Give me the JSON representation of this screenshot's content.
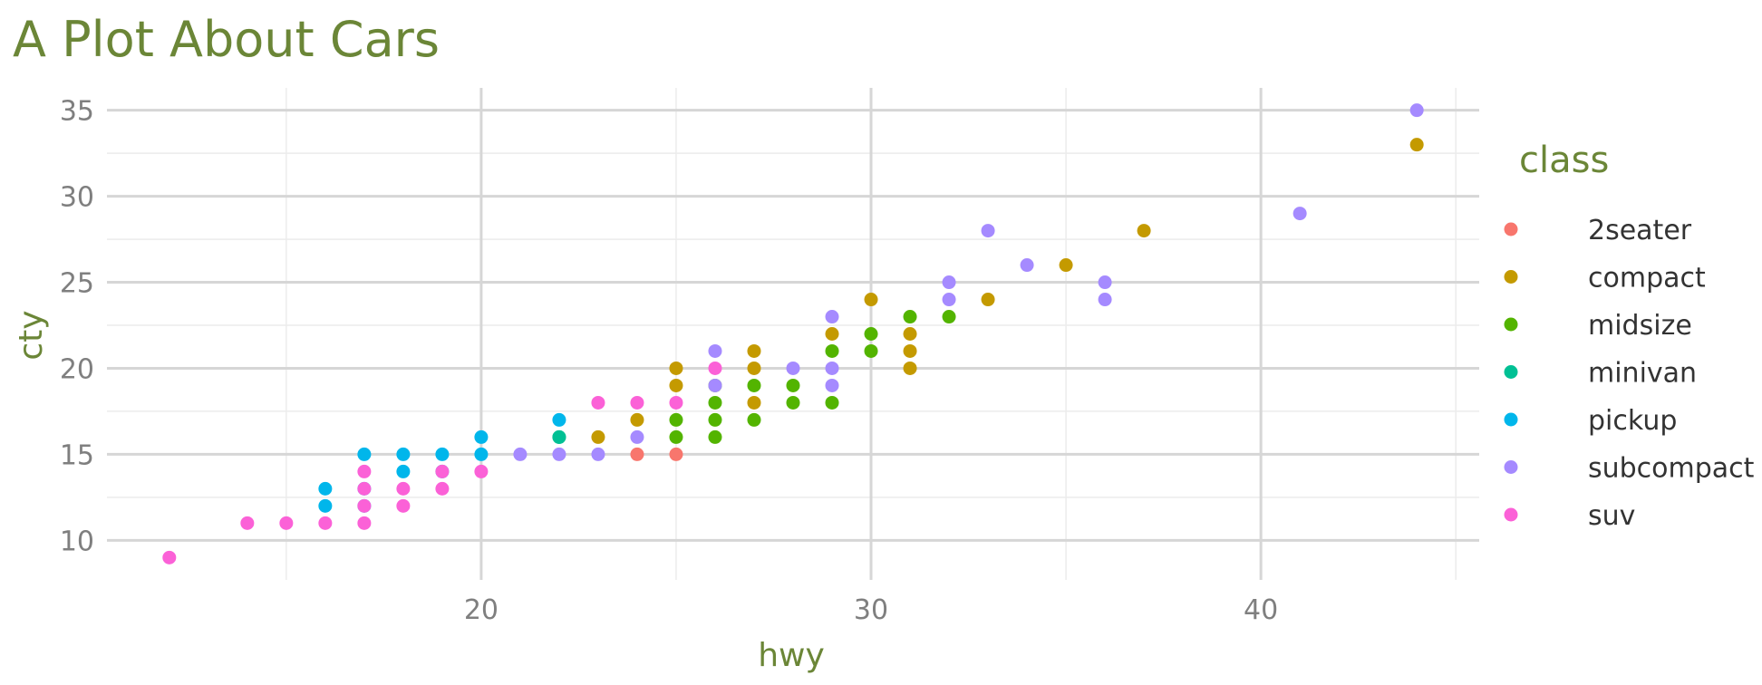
{
  "chart_data": {
    "type": "scatter",
    "title": "A Plot About Cars",
    "xlabel": "hwy",
    "ylabel": "cty",
    "xlim": [
      10.4,
      45.6
    ],
    "ylim": [
      7.7,
      36.3
    ],
    "x_ticks": [
      20,
      30,
      40
    ],
    "y_ticks": [
      10,
      15,
      20,
      25,
      30,
      35
    ],
    "x_minor_ticks": [
      15,
      25,
      35,
      45
    ],
    "y_minor_ticks": [
      12.5,
      17.5,
      22.5,
      27.5,
      32.5
    ],
    "grid": true,
    "legend": {
      "title": "class",
      "position": "right",
      "entries": [
        "2seater",
        "compact",
        "midsize",
        "minivan",
        "pickup",
        "subcompact",
        "suv"
      ]
    },
    "colors": {
      "2seater": "#F8766D",
      "compact": "#C49A00",
      "midsize": "#53B400",
      "minivan": "#00C094",
      "pickup": "#00B6EB",
      "subcompact": "#A58AFF",
      "suv": "#FB61D7"
    },
    "series": [
      {
        "name": "2seater",
        "points": [
          [
            24,
            15
          ],
          [
            25,
            15
          ]
        ]
      },
      {
        "name": "compact",
        "points": [
          [
            44,
            33
          ],
          [
            37,
            28
          ],
          [
            35,
            26
          ],
          [
            33,
            24
          ],
          [
            30,
            24
          ],
          [
            29,
            22
          ],
          [
            31,
            22
          ],
          [
            31,
            21
          ],
          [
            27,
            21
          ],
          [
            31,
            20
          ],
          [
            25,
            20
          ],
          [
            27,
            20
          ],
          [
            25,
            19
          ],
          [
            27,
            18
          ],
          [
            24,
            17
          ],
          [
            23,
            16
          ]
        ]
      },
      {
        "name": "midsize",
        "points": [
          [
            31,
            23
          ],
          [
            32,
            23
          ],
          [
            30,
            22
          ],
          [
            29,
            21
          ],
          [
            30,
            21
          ],
          [
            26,
            19
          ],
          [
            27,
            19
          ],
          [
            28,
            19
          ],
          [
            26,
            18
          ],
          [
            28,
            18
          ],
          [
            29,
            18
          ],
          [
            25,
            17
          ],
          [
            26,
            17
          ],
          [
            27,
            17
          ],
          [
            25,
            16
          ],
          [
            26,
            16
          ]
        ]
      },
      {
        "name": "minivan",
        "points": [
          [
            22,
            16
          ],
          [
            22,
            16
          ]
        ]
      },
      {
        "name": "pickup",
        "points": [
          [
            20,
            16
          ],
          [
            22,
            17
          ],
          [
            17,
            15
          ],
          [
            18,
            15
          ],
          [
            19,
            15
          ],
          [
            20,
            15
          ],
          [
            18,
            14
          ],
          [
            19,
            14
          ],
          [
            16,
            13
          ],
          [
            17,
            13
          ],
          [
            16,
            12
          ],
          [
            17,
            12
          ]
        ]
      },
      {
        "name": "subcompact",
        "points": [
          [
            44,
            35
          ],
          [
            41,
            29
          ],
          [
            33,
            28
          ],
          [
            34,
            26
          ],
          [
            32,
            25
          ],
          [
            36,
            25
          ],
          [
            32,
            24
          ],
          [
            36,
            24
          ],
          [
            29,
            23
          ],
          [
            26,
            21
          ],
          [
            28,
            20
          ],
          [
            29,
            20
          ],
          [
            26,
            19
          ],
          [
            29,
            19
          ],
          [
            24,
            16
          ],
          [
            21,
            15
          ],
          [
            22,
            15
          ],
          [
            23,
            15
          ]
        ]
      },
      {
        "name": "suv",
        "points": [
          [
            26,
            20
          ],
          [
            23,
            18
          ],
          [
            24,
            18
          ],
          [
            25,
            18
          ],
          [
            17,
            14
          ],
          [
            19,
            14
          ],
          [
            20,
            14
          ],
          [
            17,
            13
          ],
          [
            18,
            13
          ],
          [
            19,
            13
          ],
          [
            17,
            12
          ],
          [
            18,
            12
          ],
          [
            14,
            11
          ],
          [
            15,
            11
          ],
          [
            16,
            11
          ],
          [
            17,
            11
          ],
          [
            12,
            9
          ]
        ]
      }
    ]
  }
}
